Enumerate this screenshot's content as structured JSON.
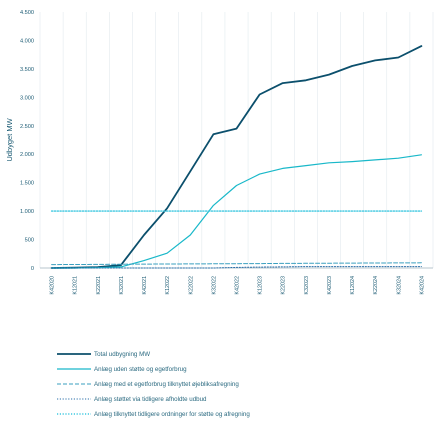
{
  "chart_data": {
    "type": "line",
    "ylabel": "Udbyget MW",
    "ylim": [
      0,
      4500
    ],
    "yticks": [
      0,
      500,
      1000,
      1500,
      2000,
      2500,
      3000,
      3500,
      4000,
      4500
    ],
    "ytick_labels": [
      "0",
      "500",
      "1.000",
      "1.500",
      "2.000",
      "2.500",
      "3.000",
      "3.500",
      "4.000",
      "4.500"
    ],
    "categories": [
      "K4 2020",
      "K1 2021",
      "K2 2021",
      "K3 2021",
      "K4 2021",
      "K1 2022",
      "K2 2022",
      "K3 2022",
      "K4 2022",
      "K1 2023",
      "K2 2023",
      "K3 2023",
      "K4 2023",
      "K1 2024",
      "K2 2024",
      "K3 2024",
      "K4 2024"
    ],
    "grid": "vertical",
    "legend_placement": "bottom",
    "series": [
      {
        "name": "Total udbygning MW",
        "color": "#0b4f6c",
        "style": "solid",
        "width": 1.8,
        "values": [
          0,
          5,
          15,
          50,
          580,
          1050,
          1700,
          2350,
          2450,
          3050,
          3250,
          3300,
          3400,
          3550,
          3650,
          3700,
          3900
        ]
      },
      {
        "name": "Anlæg uden støtte og egetforbrug",
        "color": "#19b8c9",
        "style": "solid",
        "width": 1.2,
        "values": [
          0,
          0,
          5,
          20,
          130,
          260,
          580,
          1100,
          1450,
          1650,
          1750,
          1800,
          1850,
          1870,
          1900,
          1930,
          1990
        ]
      },
      {
        "name": "Anlæg med et egetforbrug tilknyttet øjebliksafregning",
        "color": "#3a9fbf",
        "style": "dash",
        "width": 1.0,
        "values": [
          60,
          62,
          64,
          66,
          68,
          70,
          72,
          74,
          76,
          78,
          80,
          82,
          84,
          86,
          88,
          90,
          92
        ]
      },
      {
        "name": "Anlæg støttet via tidligere afholdte udbud",
        "color": "#2a6fa8",
        "style": "dot",
        "width": 1.0,
        "values": [
          0,
          0,
          0,
          0,
          0,
          0,
          0,
          0,
          10,
          15,
          20,
          25,
          25,
          25,
          25,
          25,
          25
        ]
      },
      {
        "name": "Anlæg tilknyttet tidligere ordninger for støtte og afregning",
        "color": "#3fc8e0",
        "style": "dot",
        "width": 1.4,
        "values": [
          1000,
          1000,
          1000,
          1000,
          1000,
          1000,
          1000,
          1000,
          1000,
          1000,
          1000,
          1000,
          1000,
          1000,
          1000,
          1000,
          1000
        ]
      }
    ]
  }
}
